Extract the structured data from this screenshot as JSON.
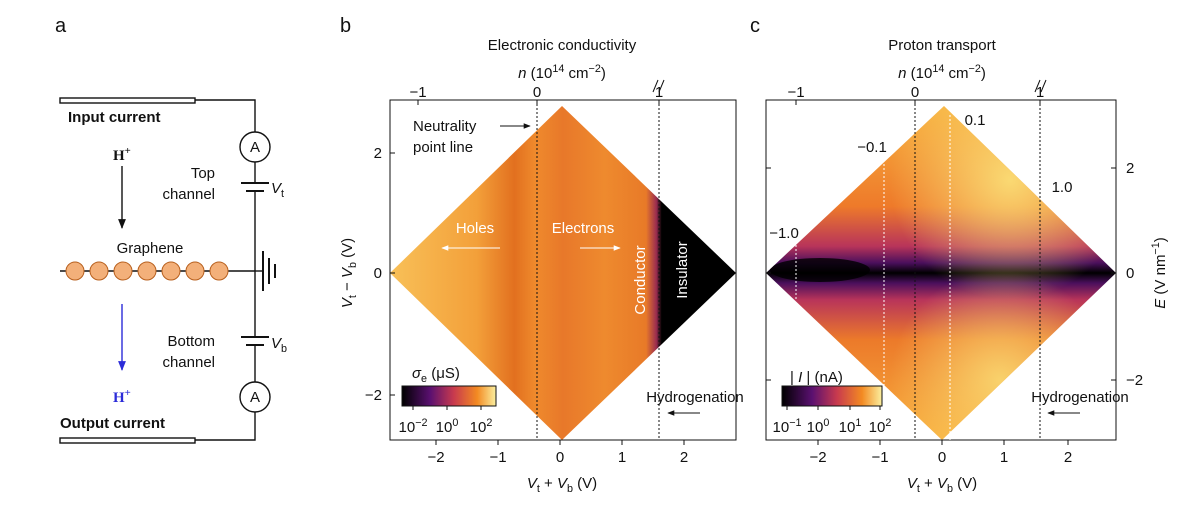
{
  "panel_a": {
    "label": "a",
    "input_current": "Input current",
    "proton_top": {
      "main": "H",
      "sup": "+"
    },
    "top_channel": [
      "Top",
      "channel"
    ],
    "ammeter_top": "A",
    "vt": {
      "main": "V",
      "sub": "t"
    },
    "graphene": "Graphene",
    "bottom_channel": [
      "Bottom",
      "channel"
    ],
    "vb": {
      "main": "V",
      "sub": "b"
    },
    "proton_bottom": {
      "main": "H",
      "sup": "+"
    },
    "ammeter_bottom": "A",
    "output_current": "Output current"
  },
  "panel_b": {
    "label": "b",
    "title": "Electronic conductivity",
    "top_axis_label": {
      "var": "n",
      "pre": " (10",
      "exp": "14",
      "unit": " cm",
      "unit_exp": "−2",
      "post": ")"
    },
    "top_ticks": [
      "−1",
      "0",
      "1"
    ],
    "x_ticks": [
      "−2",
      "−1",
      "0",
      "1",
      "2"
    ],
    "y_ticks": [
      "2",
      "0",
      "−2"
    ],
    "x_label": {
      "v1": "V",
      "s1": "t",
      "op": " + ",
      "v2": "V",
      "s2": "b",
      "unit": " (V)"
    },
    "y_label": {
      "v1": "V",
      "s1": "t",
      "op": " − ",
      "v2": "V",
      "s2": "b",
      "unit": " (V)"
    },
    "annotations": {
      "neutrality": [
        "Neutrality",
        "point line"
      ],
      "holes": "Holes",
      "electrons": "Electrons",
      "conductor": "Conductor",
      "insulator": "Insulator",
      "hydrogenation": "Hydrogenation"
    },
    "colorbar": {
      "label": {
        "sym": "σ",
        "sub": "e",
        "unit": " (μS)"
      },
      "ticks": [
        {
          "base": "10",
          "exp": "−2"
        },
        {
          "base": "10",
          "exp": "0"
        },
        {
          "base": "10",
          "exp": "2"
        }
      ]
    }
  },
  "panel_c": {
    "label": "c",
    "title": "Proton transport",
    "top_axis_label": {
      "var": "n",
      "pre": " (10",
      "exp": "14",
      "unit": " cm",
      "unit_exp": "−2",
      "post": ")"
    },
    "top_ticks": [
      "−1",
      "0",
      "1"
    ],
    "x_ticks": [
      "−2",
      "−1",
      "0",
      "1",
      "2"
    ],
    "right_ticks": [
      "2",
      "0",
      "−2"
    ],
    "x_label": {
      "v1": "V",
      "s1": "t",
      "op": " + ",
      "v2": "V",
      "s2": "b",
      "unit": " (V)"
    },
    "right_label": {
      "var": "E",
      "unit": " (V nm",
      "exp": "−1",
      "post": ")"
    },
    "field_labels": [
      "−1.0",
      "−0.1",
      "0.1",
      "1.0"
    ],
    "annotations": {
      "hydrogenation": "Hydrogenation"
    },
    "colorbar": {
      "label": {
        "pre": "| ",
        "var": "I",
        "post": " | (nA)"
      },
      "ticks": [
        {
          "base": "10",
          "exp": "−1"
        },
        {
          "base": "10",
          "exp": "0"
        },
        {
          "base": "10",
          "exp": "1"
        },
        {
          "base": "10",
          "exp": "2"
        }
      ]
    }
  }
}
